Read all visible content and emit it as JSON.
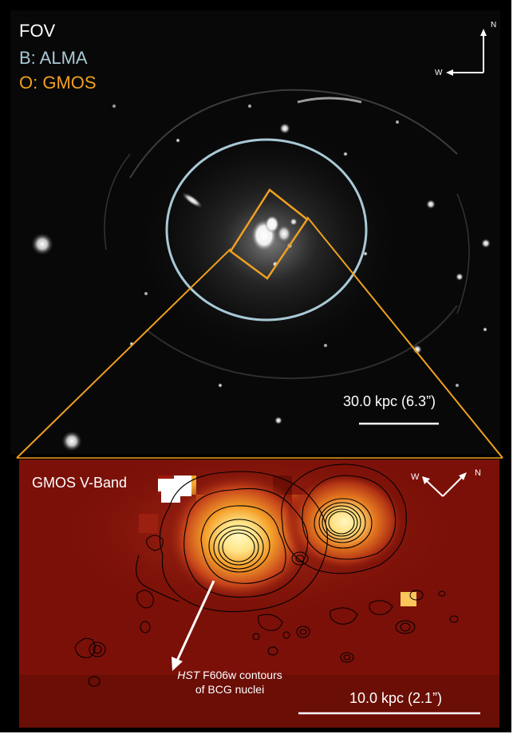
{
  "top_panel": {
    "title": "FOV",
    "alma_label": "B: ALMA",
    "gmos_label": "O: GMOS",
    "compass": {
      "north": "N",
      "west": "W"
    },
    "scale_bar": "30.0 kpc (6.3”)"
  },
  "bottom_panel": {
    "title": "GMOS V-Band",
    "compass": {
      "west": "W",
      "north": "N"
    },
    "annotation_line1_italic": "HST",
    "annotation_line1_rest": " F606w contours",
    "annotation_line2": "of BCG nuclei",
    "scale_bar": "10.0 kpc (2.1”)"
  },
  "colors": {
    "alma": "#a9c9d6",
    "gmos": "#f0a020",
    "background_red": "#7a1008",
    "contours": "#000000"
  }
}
